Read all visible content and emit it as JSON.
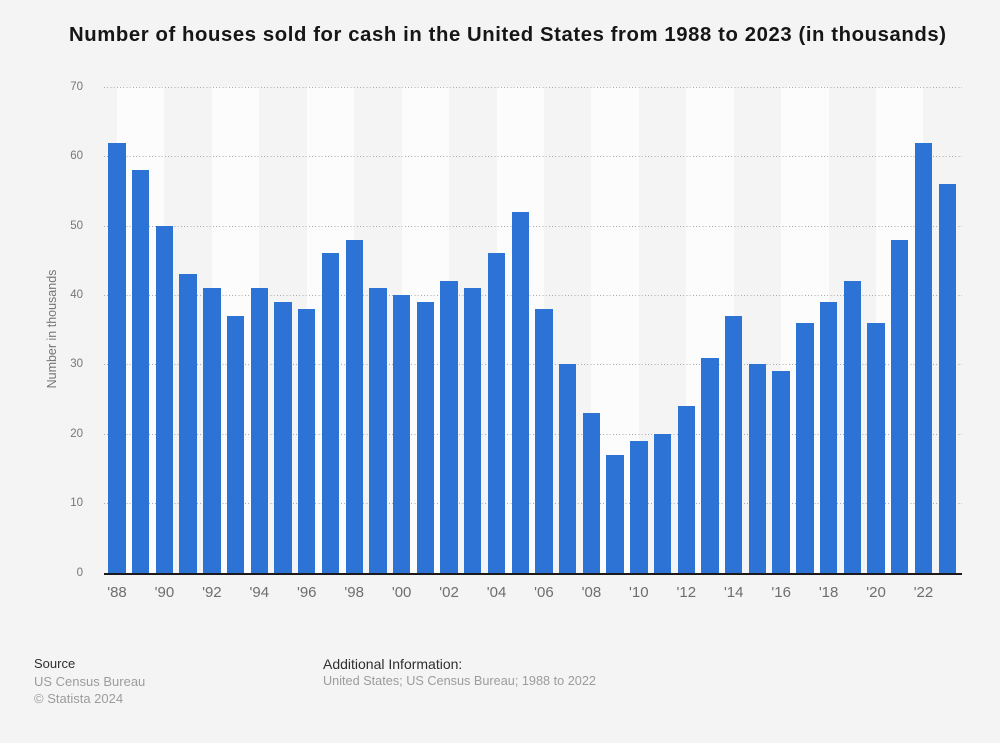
{
  "title": "Number of houses sold for cash in the United States from 1988 to 2023 (in thousands)",
  "chart_data": {
    "type": "bar",
    "x": [
      1988,
      1989,
      1990,
      1991,
      1992,
      1993,
      1994,
      1995,
      1996,
      1997,
      1998,
      1999,
      2000,
      2001,
      2002,
      2003,
      2004,
      2005,
      2006,
      2007,
      2008,
      2009,
      2010,
      2011,
      2012,
      2013,
      2014,
      2015,
      2016,
      2017,
      2018,
      2019,
      2020,
      2021,
      2022,
      2023
    ],
    "values": [
      62,
      58,
      50,
      43,
      41,
      37,
      41,
      39,
      38,
      46,
      48,
      41,
      40,
      39,
      42,
      41,
      46,
      52,
      38,
      30,
      23,
      17,
      19,
      20,
      24,
      31,
      37,
      30,
      29,
      36,
      39,
      42,
      36,
      48,
      62,
      56
    ],
    "title": "Number of houses sold for cash in the United States from 1988 to 2023 (in thousands)",
    "xlabel": "",
    "ylabel": "Number in thousands",
    "ylim": [
      0,
      70
    ],
    "y_ticks": [
      0,
      10,
      20,
      30,
      40,
      50,
      60,
      70
    ],
    "x_tick_labels": [
      "'88",
      "'90",
      "'92",
      "'94",
      "'96",
      "'98",
      "'00",
      "'02",
      "'04",
      "'06",
      "'08",
      "'10",
      "'12",
      "'14",
      "'16",
      "'18",
      "'20",
      "'22"
    ],
    "grid": "horizontal-dotted",
    "legend": "none",
    "bar_color": "#2d72d5",
    "alt_band_color": "#f4f4f4",
    "plot_background": "#fcfcfc"
  },
  "y_axis": {
    "title": "Number in thousands"
  },
  "footer": {
    "source_label": "Source",
    "source_name": "US Census Bureau",
    "copyright": "© Statista 2024",
    "additional_label": "Additional Information:",
    "additional_text": "United States; US Census Bureau; 1988 to 2022"
  }
}
